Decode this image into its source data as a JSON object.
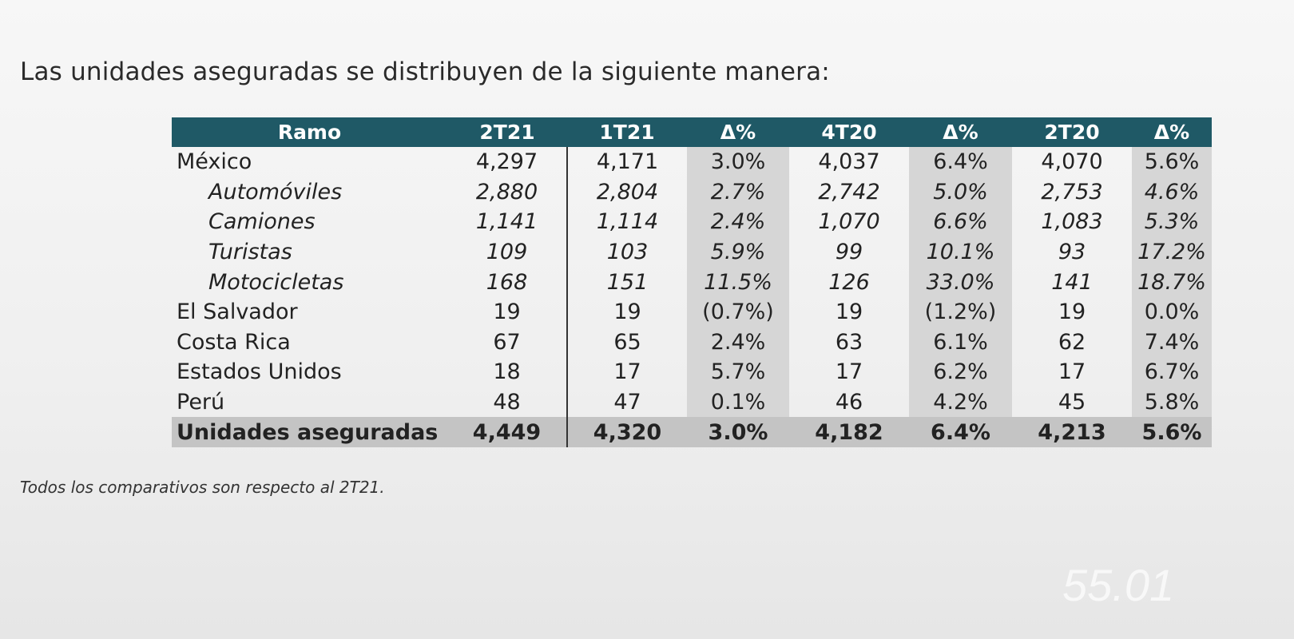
{
  "title": "Las unidades aseguradas se distribuyen de la siguiente manera:",
  "table": {
    "headers": [
      "Ramo",
      "2T21",
      "1T21",
      "Δ%",
      "4T20",
      "Δ%",
      "2T20",
      "Δ%"
    ],
    "rows": [
      {
        "label": "México",
        "sub": false,
        "values": [
          "4,297",
          "4,171",
          "3.0%",
          "4,037",
          "6.4%",
          "4,070",
          "5.6%"
        ]
      },
      {
        "label": "Automóviles",
        "sub": true,
        "values": [
          "2,880",
          "2,804",
          "2.7%",
          "2,742",
          "5.0%",
          "2,753",
          "4.6%"
        ]
      },
      {
        "label": "Camiones",
        "sub": true,
        "values": [
          "1,141",
          "1,114",
          "2.4%",
          "1,070",
          "6.6%",
          "1,083",
          "5.3%"
        ]
      },
      {
        "label": "Turistas",
        "sub": true,
        "values": [
          "109",
          "103",
          "5.9%",
          "99",
          "10.1%",
          "93",
          "17.2%"
        ]
      },
      {
        "label": "Motocicletas",
        "sub": true,
        "values": [
          "168",
          "151",
          "11.5%",
          "126",
          "33.0%",
          "141",
          "18.7%"
        ]
      },
      {
        "label": "El Salvador",
        "sub": false,
        "values": [
          "19",
          "19",
          "(0.7%)",
          "19",
          "(1.2%)",
          "19",
          "0.0%"
        ]
      },
      {
        "label": "Costa Rica",
        "sub": false,
        "values": [
          "67",
          "65",
          "2.4%",
          "63",
          "6.1%",
          "62",
          "7.4%"
        ]
      },
      {
        "label": "Estados Unidos",
        "sub": false,
        "values": [
          "18",
          "17",
          "5.7%",
          "17",
          "6.2%",
          "17",
          "6.7%"
        ]
      },
      {
        "label": "Perú",
        "sub": false,
        "values": [
          "48",
          "47",
          "0.1%",
          "46",
          "4.2%",
          "45",
          "5.8%"
        ]
      }
    ],
    "total": {
      "label": "Unidades aseguradas",
      "values": [
        "4,449",
        "4,320",
        "3.0%",
        "4,182",
        "6.4%",
        "4,213",
        "5.6%"
      ]
    }
  },
  "footnote": "Todos los comparativos son respecto al 2T21.",
  "watermark": "55.01",
  "colors": {
    "header": "#1f5966",
    "delta_col": "#d6d6d6",
    "total_row": "#c4c4c4"
  }
}
